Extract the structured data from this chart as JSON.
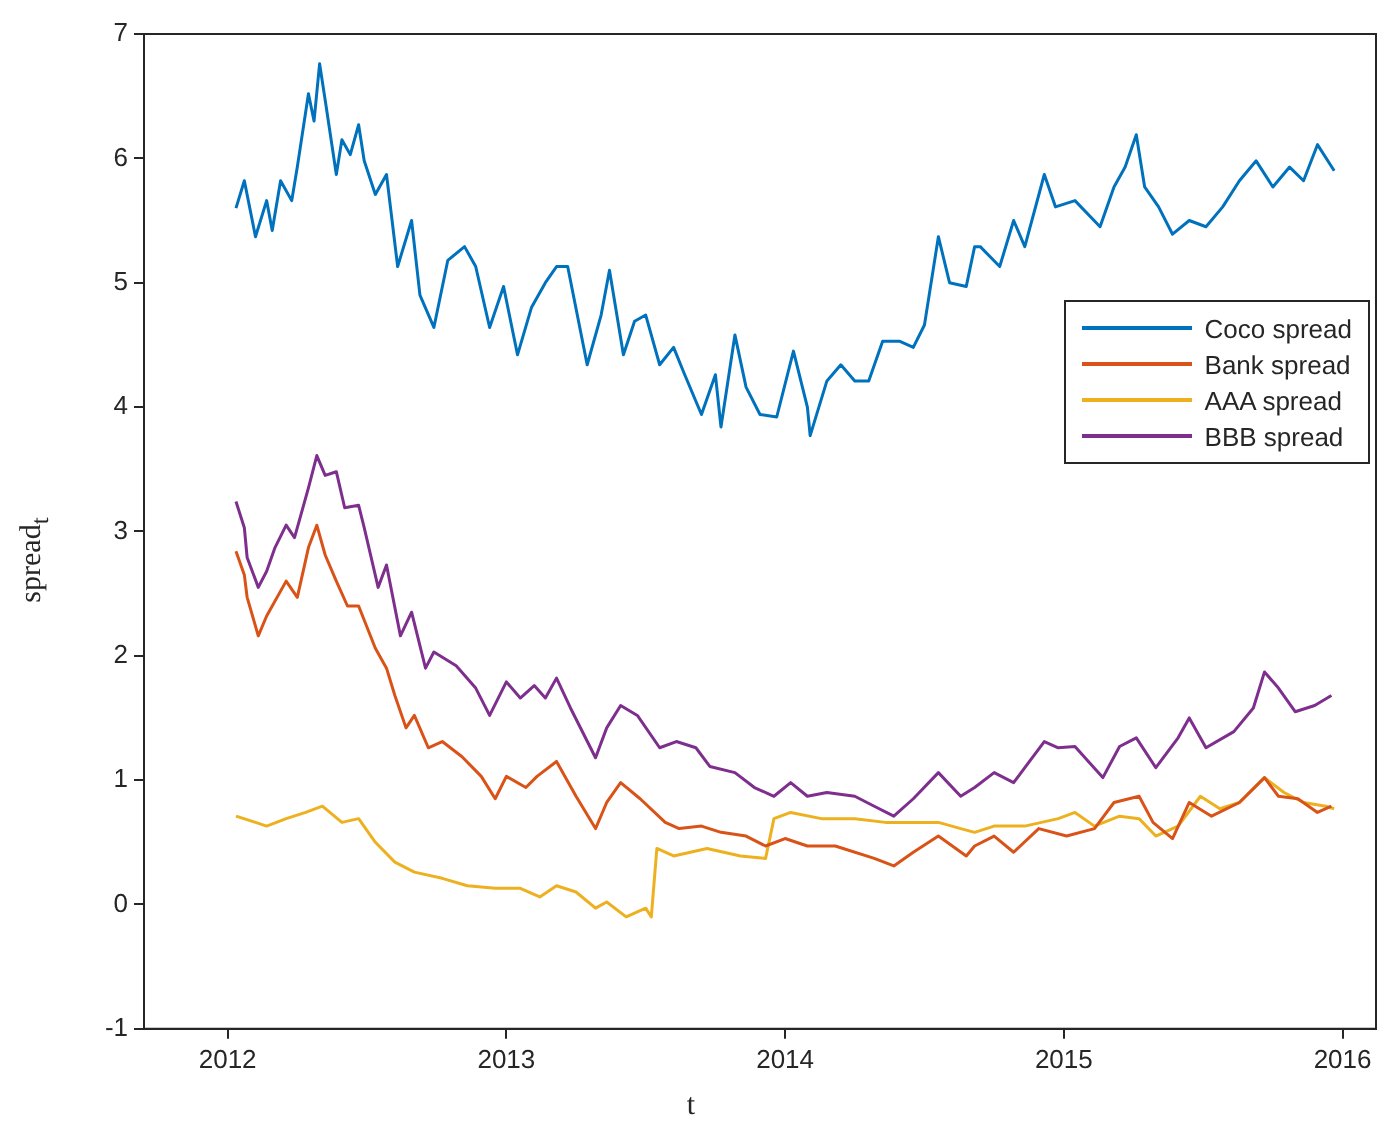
{
  "chart_data": {
    "type": "line",
    "xlabel": "t",
    "ylabel": "spread$_{t}$",
    "xlim": [
      2011.7,
      2016.12
    ],
    "xticks": [
      2012,
      2013,
      2014,
      2015,
      2016
    ],
    "ylim": [
      -1,
      7
    ],
    "yticks": [
      -1,
      0,
      1,
      2,
      3,
      4,
      5,
      6,
      7
    ],
    "grid": false,
    "legend": "right",
    "marker": "none",
    "line_style": "solid",
    "series": [
      {
        "name": "Coco spread",
        "color": "#0072bd",
        "x": [
          2012.03,
          2012.06,
          2012.1,
          2012.14,
          2012.16,
          2012.19,
          2012.23,
          2012.25,
          2012.29,
          2012.31,
          2012.33,
          2012.35,
          2012.39,
          2012.41,
          2012.44,
          2012.47,
          2012.49,
          2012.53,
          2012.57,
          2012.61,
          2012.66,
          2012.69,
          2012.74,
          2012.79,
          2012.85,
          2012.89,
          2012.94,
          2012.99,
          2013.04,
          2013.09,
          2013.14,
          2013.18,
          2013.22,
          2013.29,
          2013.34,
          2013.37,
          2013.42,
          2013.46,
          2013.5,
          2013.55,
          2013.6,
          2013.64,
          2013.7,
          2013.75,
          2013.77,
          2013.82,
          2013.86,
          2013.91,
          2013.97,
          2014.03,
          2014.08,
          2014.09,
          2014.15,
          2014.2,
          2014.25,
          2014.3,
          2014.35,
          2014.41,
          2014.46,
          2014.5,
          2014.55,
          2014.59,
          2014.65,
          2014.68,
          2014.7,
          2014.77,
          2014.82,
          2014.86,
          2014.93,
          2014.97,
          2015.04,
          2015.13,
          2015.18,
          2015.22,
          2015.26,
          2015.29,
          2015.34,
          2015.39,
          2015.45,
          2015.51,
          2015.57,
          2015.63,
          2015.69,
          2015.75,
          2015.81,
          2015.86,
          2015.91,
          2015.97
        ],
        "values": [
          5.6,
          5.82,
          5.37,
          5.66,
          5.42,
          5.82,
          5.66,
          5.93,
          6.52,
          6.3,
          6.76,
          6.47,
          5.87,
          6.15,
          6.03,
          6.27,
          5.98,
          5.71,
          5.87,
          5.13,
          5.5,
          4.9,
          4.64,
          5.18,
          5.29,
          5.13,
          4.64,
          4.97,
          4.42,
          4.8,
          5.0,
          5.13,
          5.13,
          4.34,
          4.74,
          5.1,
          4.42,
          4.69,
          4.74,
          4.34,
          4.48,
          4.26,
          3.94,
          4.26,
          3.84,
          4.58,
          4.16,
          3.94,
          3.92,
          4.45,
          4.0,
          3.77,
          4.21,
          4.34,
          4.21,
          4.21,
          4.53,
          4.53,
          4.48,
          4.66,
          5.37,
          5.0,
          4.97,
          5.29,
          5.29,
          5.13,
          5.5,
          5.29,
          5.87,
          5.61,
          5.66,
          5.45,
          5.77,
          5.93,
          6.19,
          5.77,
          5.61,
          5.39,
          5.5,
          5.45,
          5.61,
          5.82,
          5.98,
          5.77,
          5.93,
          5.82,
          6.11,
          5.9
        ]
      },
      {
        "name": "Bank spread",
        "color": "#d95319",
        "x": [
          2012.03,
          2012.06,
          2012.07,
          2012.11,
          2012.14,
          2012.21,
          2012.25,
          2012.29,
          2012.32,
          2012.35,
          2012.39,
          2012.43,
          2012.47,
          2012.53,
          2012.57,
          2012.6,
          2012.64,
          2012.67,
          2012.72,
          2012.77,
          2012.84,
          2012.91,
          2012.96,
          2013.0,
          2013.07,
          2013.11,
          2013.18,
          2013.25,
          2013.32,
          2013.36,
          2013.41,
          2013.48,
          2013.57,
          2013.62,
          2013.7,
          2013.77,
          2013.86,
          2013.93,
          2014.0,
          2014.08,
          2014.18,
          2014.32,
          2014.39,
          2014.46,
          2014.55,
          2014.65,
          2014.68,
          2014.75,
          2014.82,
          2014.91,
          2015.01,
          2015.11,
          2015.18,
          2015.27,
          2015.32,
          2015.39,
          2015.45,
          2015.53,
          2015.63,
          2015.72,
          2015.77,
          2015.84,
          2015.91,
          2015.96
        ],
        "values": [
          2.84,
          2.65,
          2.47,
          2.16,
          2.32,
          2.6,
          2.47,
          2.87,
          3.05,
          2.81,
          2.6,
          2.4,
          2.4,
          2.06,
          1.9,
          1.68,
          1.42,
          1.52,
          1.26,
          1.31,
          1.19,
          1.03,
          0.85,
          1.03,
          0.94,
          1.03,
          1.15,
          0.87,
          0.61,
          0.82,
          0.98,
          0.85,
          0.66,
          0.61,
          0.63,
          0.58,
          0.55,
          0.47,
          0.53,
          0.47,
          0.47,
          0.37,
          0.31,
          0.42,
          0.55,
          0.39,
          0.47,
          0.55,
          0.42,
          0.61,
          0.55,
          0.61,
          0.82,
          0.87,
          0.66,
          0.53,
          0.82,
          0.71,
          0.82,
          1.02,
          0.87,
          0.85,
          0.74,
          0.79
        ]
      },
      {
        "name": "AAA spread",
        "color": "#edb120",
        "x": [
          2012.03,
          2012.1,
          2012.14,
          2012.21,
          2012.28,
          2012.34,
          2012.41,
          2012.47,
          2012.53,
          2012.6,
          2012.67,
          2012.77,
          2012.86,
          2012.96,
          2013.05,
          2013.12,
          2013.18,
          2013.25,
          2013.32,
          2013.36,
          2013.43,
          2013.5,
          2013.52,
          2013.54,
          2013.6,
          2013.72,
          2013.84,
          2013.93,
          2013.96,
          2014.02,
          2014.13,
          2014.25,
          2014.36,
          2014.46,
          2014.55,
          2014.63,
          2014.68,
          2014.75,
          2014.86,
          2014.98,
          2015.04,
          2015.11,
          2015.2,
          2015.27,
          2015.33,
          2015.41,
          2015.49,
          2015.56,
          2015.63,
          2015.72,
          2015.79,
          2015.86,
          2015.94,
          2015.97
        ],
        "values": [
          0.71,
          0.66,
          0.63,
          0.69,
          0.74,
          0.79,
          0.66,
          0.69,
          0.5,
          0.34,
          0.26,
          0.21,
          0.15,
          0.13,
          0.13,
          0.06,
          0.15,
          0.1,
          -0.03,
          0.02,
          -0.1,
          -0.03,
          -0.1,
          0.45,
          0.39,
          0.45,
          0.39,
          0.37,
          0.69,
          0.74,
          0.69,
          0.69,
          0.66,
          0.66,
          0.66,
          0.61,
          0.58,
          0.63,
          0.63,
          0.69,
          0.74,
          0.63,
          0.71,
          0.69,
          0.55,
          0.63,
          0.87,
          0.77,
          0.82,
          1.02,
          0.9,
          0.82,
          0.79,
          0.77
        ]
      },
      {
        "name": "BBB spread",
        "color": "#7e2f8e",
        "x": [
          2012.03,
          2012.06,
          2012.07,
          2012.11,
          2012.14,
          2012.17,
          2012.21,
          2012.24,
          2012.29,
          2012.32,
          2012.35,
          2012.39,
          2012.42,
          2012.47,
          2012.49,
          2012.54,
          2012.57,
          2012.62,
          2012.66,
          2012.71,
          2012.74,
          2012.82,
          2012.89,
          2012.94,
          2013.0,
          2013.05,
          2013.1,
          2013.14,
          2013.18,
          2013.23,
          2013.32,
          2013.36,
          2013.41,
          2013.47,
          2013.55,
          2013.61,
          2013.68,
          2013.73,
          2013.82,
          2013.89,
          2013.96,
          2014.02,
          2014.08,
          2014.15,
          2014.25,
          2014.32,
          2014.39,
          2014.46,
          2014.55,
          2014.63,
          2014.68,
          2014.75,
          2014.82,
          2014.93,
          2014.98,
          2015.04,
          2015.14,
          2015.2,
          2015.26,
          2015.33,
          2015.41,
          2015.45,
          2015.51,
          2015.61,
          2015.68,
          2015.72,
          2015.77,
          2015.83,
          2015.9,
          2015.96
        ],
        "values": [
          3.24,
          3.03,
          2.79,
          2.55,
          2.68,
          2.87,
          3.05,
          2.95,
          3.35,
          3.61,
          3.45,
          3.48,
          3.19,
          3.21,
          3.03,
          2.55,
          2.73,
          2.16,
          2.35,
          1.9,
          2.03,
          1.92,
          1.74,
          1.52,
          1.79,
          1.66,
          1.76,
          1.66,
          1.82,
          1.58,
          1.18,
          1.42,
          1.6,
          1.52,
          1.26,
          1.31,
          1.26,
          1.11,
          1.06,
          0.94,
          0.87,
          0.98,
          0.87,
          0.9,
          0.87,
          0.79,
          0.71,
          0.85,
          1.06,
          0.87,
          0.94,
          1.06,
          0.98,
          1.31,
          1.26,
          1.27,
          1.02,
          1.27,
          1.34,
          1.1,
          1.34,
          1.5,
          1.26,
          1.39,
          1.58,
          1.87,
          1.74,
          1.55,
          1.6,
          1.68
        ]
      }
    ]
  }
}
